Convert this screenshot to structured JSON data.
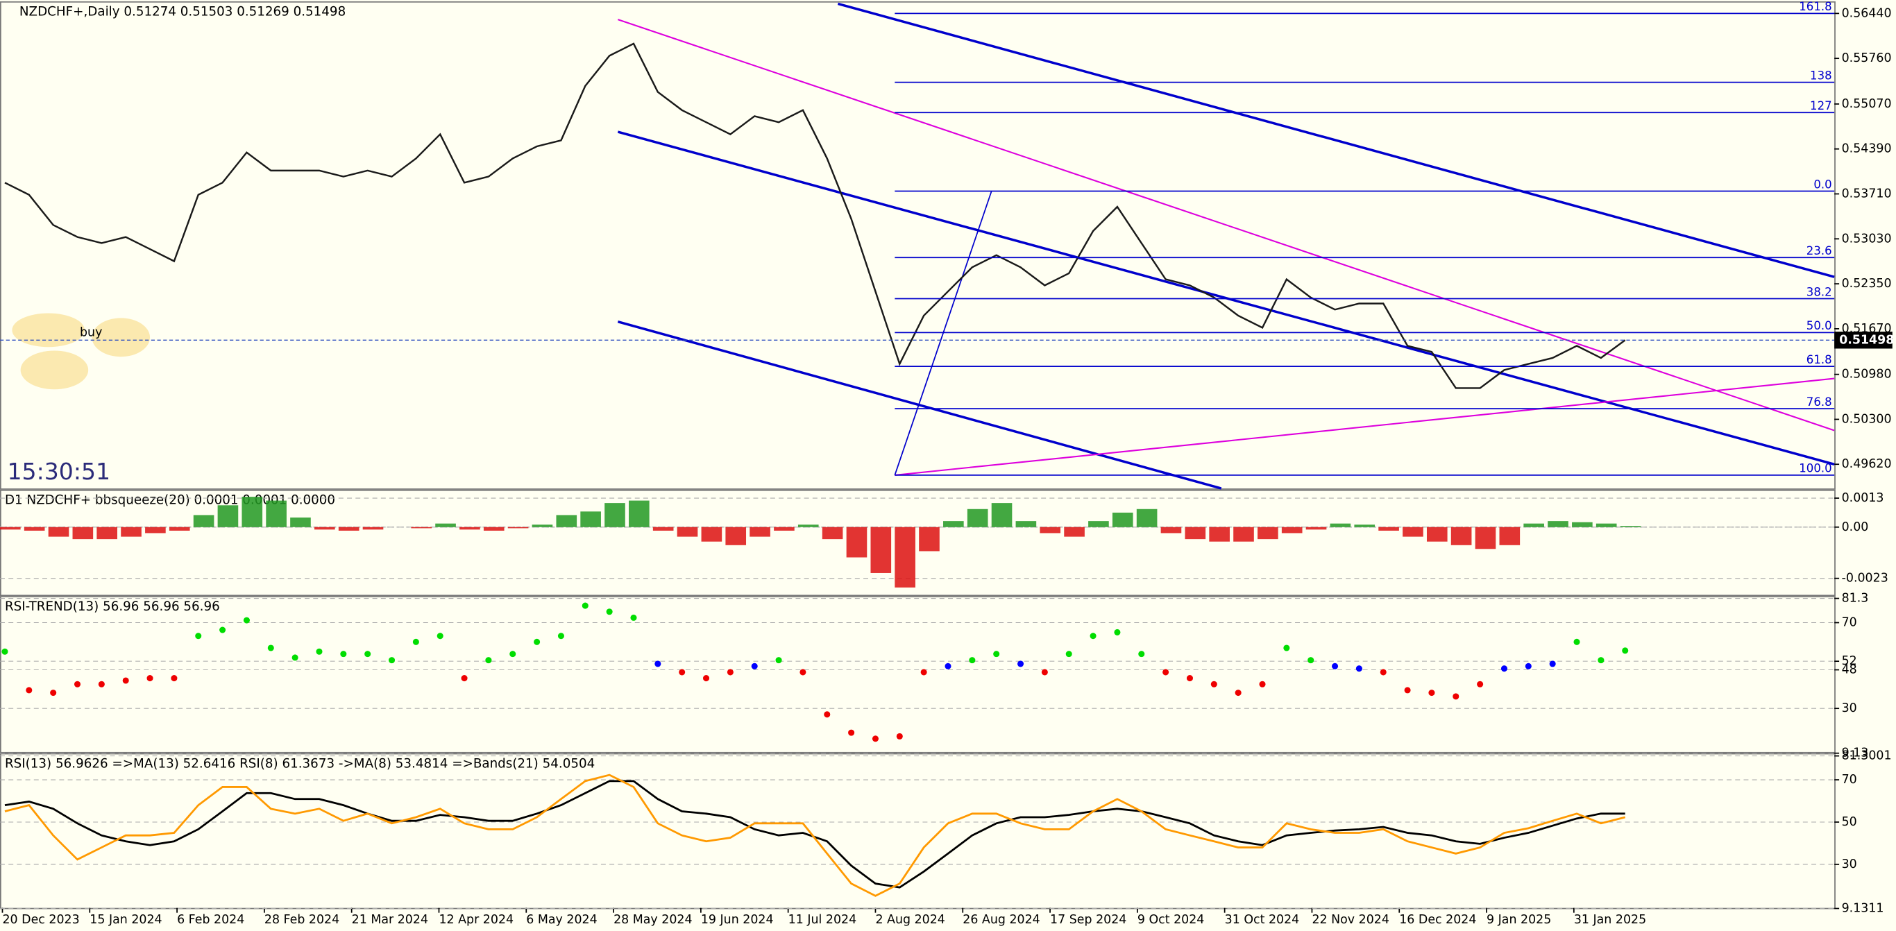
{
  "header": {
    "clock": "15:30:51",
    "trade_label": "buy"
  },
  "chart_data": [
    {
      "type": "line",
      "title": "NZDCHF+,Daily  0.51274 0.51503 0.51269 0.51498",
      "color": "#1a1a1a",
      "values": [
        0.5388,
        0.53697,
        0.5324,
        0.53058,
        0.52966,
        0.53058,
        0.52875,
        0.52692,
        0.53697,
        0.5388,
        0.54337,
        0.54063,
        0.54063,
        0.54063,
        0.53972,
        0.54063,
        0.53972,
        0.54246,
        0.54612,
        0.5388,
        0.53972,
        0.54246,
        0.54429,
        0.5452,
        0.55343,
        0.558,
        0.55983,
        0.55252,
        0.54977,
        0.54794,
        0.54612,
        0.54886,
        0.54794,
        0.54977,
        0.54246,
        0.53332,
        0.52235,
        0.51138,
        0.51869,
        0.52235,
        0.526,
        0.52783,
        0.526,
        0.52326,
        0.52509,
        0.53149,
        0.53515,
        0.52966,
        0.52418,
        0.52326,
        0.52143,
        0.51869,
        0.51686,
        0.52418,
        0.52143,
        0.5196,
        0.52052,
        0.52052,
        0.51412,
        0.5132,
        0.50772,
        0.50772,
        0.51046,
        0.51138,
        0.51229,
        0.51412,
        0.51229,
        0.51498
      ],
      "ylim": [
        0.49254,
        0.56623
      ],
      "yticks": [
        {
          "value": 0.5644,
          "label": "0.56440"
        },
        {
          "value": 0.5576,
          "label": "0.55760"
        },
        {
          "value": 0.5507,
          "label": "0.55070"
        },
        {
          "value": 0.5439,
          "label": "0.54390"
        },
        {
          "value": 0.5371,
          "label": "0.53710"
        },
        {
          "value": 0.5303,
          "label": "0.53030"
        },
        {
          "value": 0.5235,
          "label": "0.52350"
        },
        {
          "value": 0.5167,
          "label": "0.51670"
        },
        {
          "value": 0.5098,
          "label": "0.50980"
        },
        {
          "value": 0.503,
          "label": "0.50300"
        },
        {
          "value": 0.4962,
          "label": "0.49620"
        }
      ],
      "fib_levels": [
        {
          "label": "161.8",
          "price": 0.5644
        },
        {
          "label": "138",
          "price": 0.55398
        },
        {
          "label": "127",
          "price": 0.54941
        },
        {
          "label": "0.0",
          "price": 0.53752
        },
        {
          "label": "23.6",
          "price": 0.52747
        },
        {
          "label": "38.2",
          "price": 0.52125
        },
        {
          "label": "50.0",
          "price": 0.51613
        },
        {
          "label": "61.8",
          "price": 0.51101
        },
        {
          "label": "76.8",
          "price": 0.50461
        },
        {
          "label": "100.0",
          "price": 0.49456
        }
      ],
      "fib_color": "#0000cc",
      "date_labels": [
        "20 Dec 2023",
        "15 Jan 2024",
        "6 Feb 2024",
        "28 Feb 2024",
        "21 Mar 2024",
        "12 Apr 2024",
        "6 May 2024",
        "28 May 2024",
        "19 Jun 2024",
        "11 Jul 2024",
        "2 Aug 2024",
        "26 Aug 2024",
        "17 Sep 2024",
        "9 Oct 2024",
        "31 Oct 2024",
        "22 Nov 2024",
        "16 Dec 2024",
        "9 Jan 2025",
        "31 Jan 2025"
      ]
    },
    {
      "type": "bar",
      "title": "D1 NZDCHF+ bbsqueeze(20) 0.0001 0.0001 0.0000",
      "colors": {
        "positive": "#229922",
        "negative": "#dd1111"
      },
      "values": [
        -0.00011,
        -0.00016,
        -0.00043,
        -0.00054,
        -0.00054,
        -0.00043,
        -0.00027,
        -0.00016,
        0.00054,
        0.00098,
        0.00136,
        0.00119,
        0.00043,
        -0.00011,
        -0.00016,
        -0.00011,
        0,
        -5e-05,
        0.00016,
        -0.00011,
        -0.00016,
        -5e-05,
        0.00011,
        0.00054,
        0.0007,
        0.00108,
        0.00119,
        -0.00016,
        -0.00043,
        -0.00065,
        -0.00081,
        -0.00043,
        -0.00016,
        0.00011,
        -0.00054,
        -0.00136,
        -0.00206,
        -0.00271,
        -0.00108,
        0.00027,
        0.00081,
        0.00108,
        0.00027,
        -0.00027,
        -0.00043,
        0.00027,
        0.00065,
        0.00081,
        -0.00027,
        -0.00054,
        -0.00065,
        -0.00065,
        -0.00054,
        -0.00027,
        -0.00011,
        0.00016,
        0.00011,
        -0.00016,
        -0.00043,
        -0.00065,
        -0.00081,
        -0.00098,
        -0.00081,
        0.00016,
        0.00027,
        0.00022,
        0.00016,
        5e-05
      ],
      "ylim": [
        -0.00304,
        0.00168
      ],
      "yticks": [
        0.0013,
        {
          "value": 0,
          "label": "0.00"
        },
        -0.0023
      ]
    },
    {
      "type": "scatter",
      "title": "RSI-TREND(13) 56.96 56.96 56.96",
      "colors": {
        "up": "#00dd00",
        "mid": "#0000ff",
        "down": "#ee0000"
      },
      "values": [
        56.5,
        38.5,
        37.3,
        41.3,
        41.3,
        43.0,
        44.1,
        44.1,
        63.8,
        66.6,
        71.1,
        58.2,
        53.7,
        56.5,
        55.4,
        55.4,
        52.5,
        61.0,
        63.8,
        44.1,
        52.5,
        55.4,
        61.0,
        63.8,
        77.9,
        75.1,
        72.3,
        50.8,
        46.9,
        44.1,
        46.9,
        49.7,
        52.5,
        46.9,
        27.2,
        18.7,
        15.9,
        17.0,
        46.9,
        49.7,
        52.5,
        55.4,
        50.8,
        46.9,
        55.4,
        63.8,
        65.5,
        55.4,
        46.9,
        44.1,
        41.3,
        37.3,
        41.3,
        58.2,
        52.5,
        49.7,
        48.6,
        46.9,
        38.5,
        37.3,
        35.6,
        41.3,
        48.6,
        49.7,
        50.8,
        61.0,
        52.5,
        56.96
      ],
      "ylim": [
        9.7,
        82.4
      ],
      "yticks": [
        81.3,
        70,
        52,
        48,
        30,
        9.13
      ]
    },
    {
      "type": "line",
      "title": "RSI(13) 56.9626  =>MA(13) 52.6416  RSI(8) 61.3673  ->MA(8) 53.4814  =>Bands(21) 54.0504",
      "series": [
        {
          "color": "#000000",
          "values": [
            58.0,
            59.7,
            56.3,
            49.4,
            43.7,
            40.9,
            39.1,
            40.9,
            46.6,
            55.1,
            63.7,
            63.7,
            60.9,
            60.9,
            58.0,
            54.0,
            50.6,
            50.6,
            53.4,
            52.3,
            50.6,
            50.6,
            54.0,
            58.0,
            63.7,
            69.4,
            69.4,
            60.9,
            55.1,
            54.0,
            52.3,
            46.6,
            43.7,
            44.9,
            40.9,
            29.4,
            20.9,
            19.1,
            26.6,
            35.1,
            43.7,
            49.4,
            52.3,
            52.3,
            53.4,
            55.1,
            56.3,
            55.1,
            52.3,
            49.4,
            43.7,
            40.9,
            39.1,
            43.7,
            44.9,
            46.0,
            46.6,
            47.7,
            44.9,
            43.7,
            40.9,
            39.7,
            42.6,
            44.9,
            48.3,
            51.7,
            54.0,
            54.0
          ]
        },
        {
          "color": "#ff9900",
          "values": [
            55.1,
            58.0,
            43.7,
            32.3,
            38.0,
            43.7,
            43.7,
            44.9,
            58.0,
            66.6,
            66.6,
            56.3,
            54.0,
            56.3,
            50.6,
            54.0,
            49.4,
            52.3,
            56.3,
            49.4,
            46.6,
            46.6,
            52.3,
            60.9,
            69.4,
            72.3,
            66.6,
            49.4,
            43.7,
            40.9,
            42.6,
            49.4,
            49.4,
            49.4,
            35.1,
            20.9,
            15.1,
            20.9,
            38.0,
            49.4,
            54.0,
            54.0,
            49.4,
            46.6,
            46.6,
            55.1,
            60.9,
            55.1,
            46.6,
            43.7,
            40.9,
            38.0,
            38.0,
            49.4,
            46.6,
            44.9,
            44.9,
            46.6,
            40.9,
            38.0,
            35.1,
            38.0,
            44.9,
            47.1,
            50.6,
            54.0,
            49.4,
            52.3
          ]
        }
      ],
      "ylim": [
        9.4,
        82.6
      ],
      "yticks": [
        81.3001,
        70,
        50,
        30,
        9.1311
      ]
    }
  ]
}
